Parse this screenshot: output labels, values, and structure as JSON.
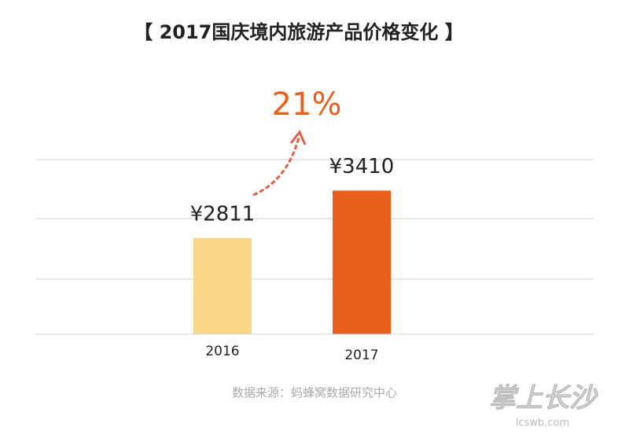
{
  "chart_data": {
    "type": "bar",
    "title": "【 2017国庆境内旅游产品价格变化 】",
    "categories": [
      "2016",
      "2017"
    ],
    "values": [
      2811,
      3410
    ],
    "value_labels": [
      "¥2811",
      "¥3410"
    ],
    "colors": [
      "#f7d68a",
      "#e8601c"
    ],
    "ylim": [
      1600,
      3800
    ],
    "annotation": "21%",
    "source": "数据来源：蚂蜂窝数据研究中心",
    "watermark": {
      "name": "掌上长沙",
      "url": "lcswb.com"
    }
  }
}
